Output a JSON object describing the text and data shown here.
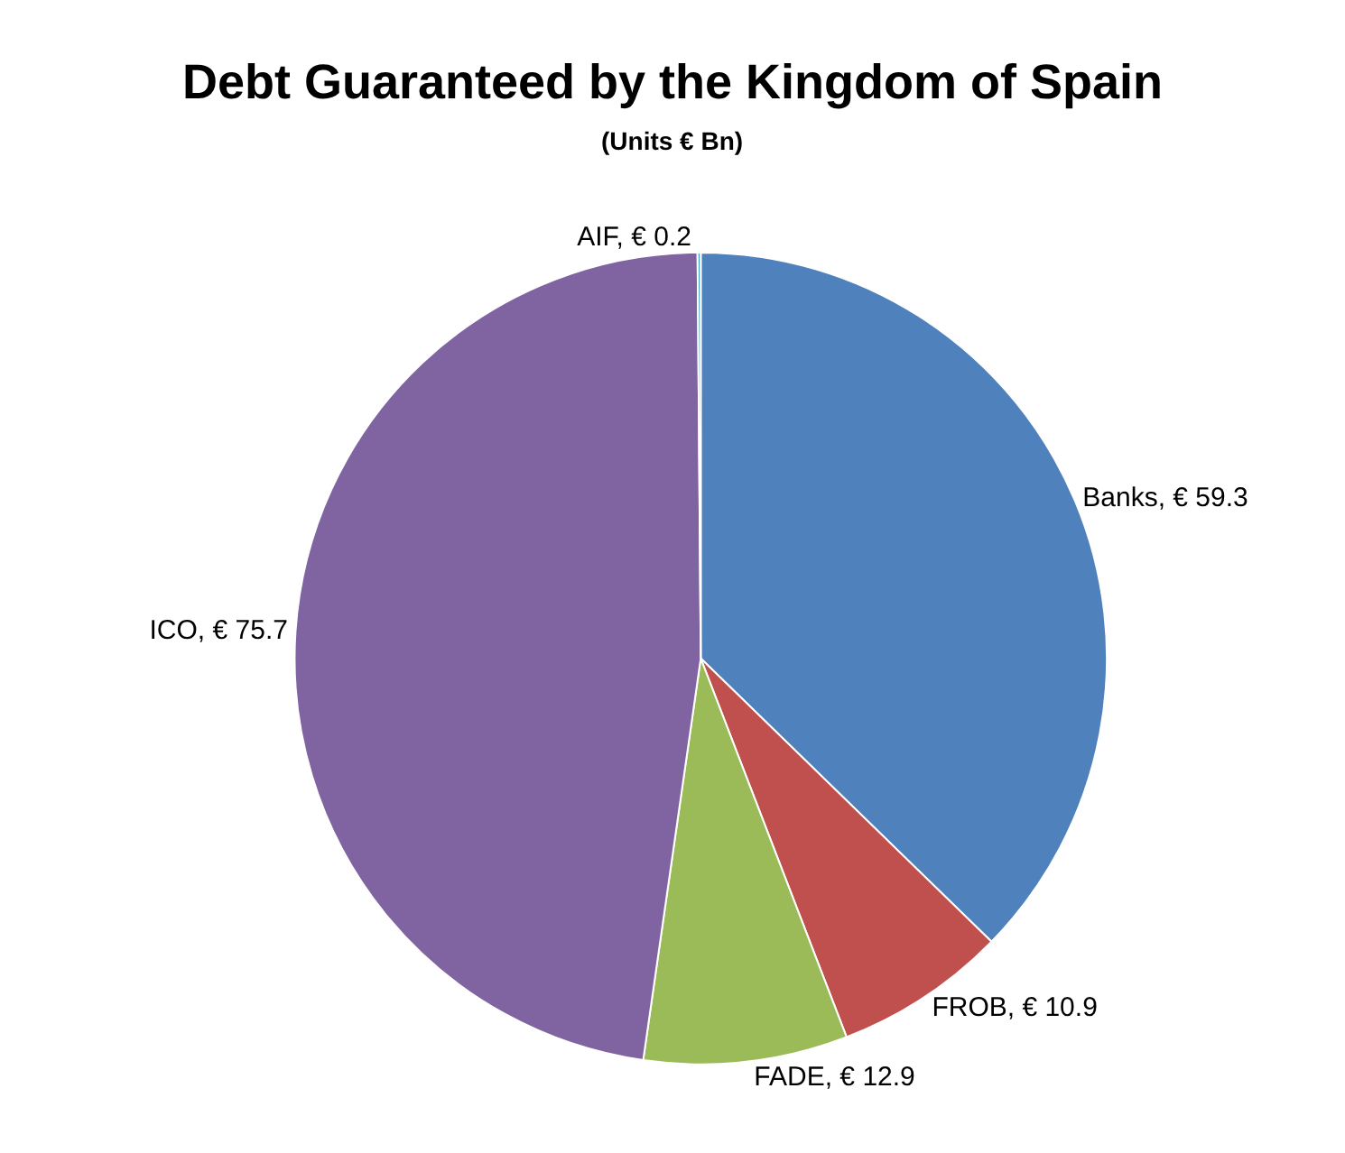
{
  "chart_data": {
    "type": "pie",
    "title": "Debt Guaranteed by the Kingdom of Spain",
    "subtitle": "(Units € Bn)",
    "categories": [
      "Banks",
      "FROB",
      "FADE",
      "ICO",
      "AIF"
    ],
    "values": [
      59.3,
      10.9,
      12.9,
      75.7,
      0.2
    ],
    "colors": [
      "#4f81bd",
      "#c0504d",
      "#9bbb59",
      "#8064a2",
      "#4bacc6"
    ],
    "value_labels": [
      "€ 59.3",
      "€ 10.9",
      "€ 12.9",
      "€ 75.7",
      "€ 0.2"
    ],
    "legend": false
  }
}
